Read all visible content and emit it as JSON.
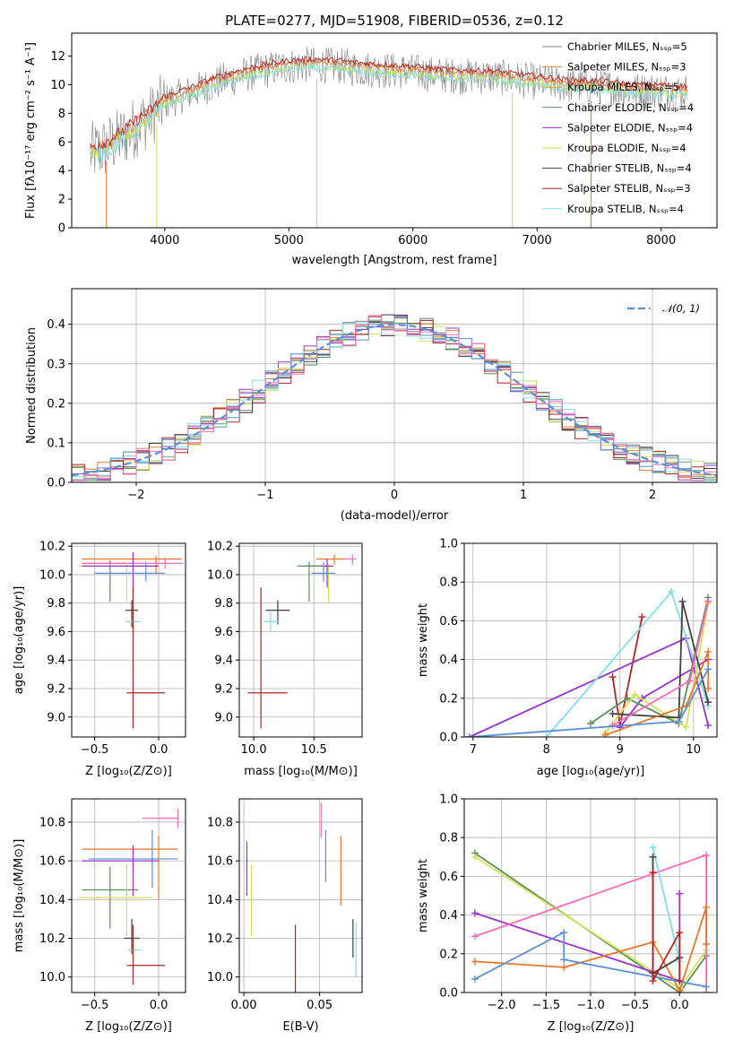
{
  "title": "PLATE=0277, MJD=51908, FIBERID=0536, z=0.12",
  "colors": [
    "#808080",
    "#ff7f0e",
    "#ff7f0e",
    "#2ca02c",
    "#9932cc",
    "#d4e157",
    "#404040",
    "#b22222",
    "#80dfe6"
  ],
  "chart_data": [
    {
      "id": "spectrum",
      "type": "line",
      "xlabel": "wavelength [Angstrom, rest frame]",
      "ylabel": "Flux [fλ10⁻¹⁷ erg cm⁻² s⁻¹ A⁻¹]",
      "xlim": [
        3250,
        8450
      ],
      "ylim": [
        0,
        13.6
      ],
      "xticks": [
        4000,
        5000,
        6000,
        7000,
        8000
      ],
      "yticks": [
        0,
        2,
        4,
        6,
        8,
        10,
        12
      ],
      "legend_position": "upper right",
      "series": [
        {
          "name": "Chabrier MILES, N_SSP=5",
          "color": "#808080"
        },
        {
          "name": "Salpeter MILES, N_SSP=3",
          "color": "#e6762a"
        },
        {
          "name": "Kroupa MILES, N_SSP=5",
          "color": "#e69b3a"
        },
        {
          "name": "Chabrier ELODIE, N_SSP=4",
          "color": "#5a8f5a"
        },
        {
          "name": "Salpeter ELODIE, N_SSP=4",
          "color": "#9932cc"
        },
        {
          "name": "Kroupa ELODIE, N_SSP=4",
          "color": "#d4e157"
        },
        {
          "name": "Chabrier STELIB, N_SSP=4",
          "color": "#404040"
        },
        {
          "name": "Salpeter STELIB, N_SSP=3",
          "color": "#b22222"
        },
        {
          "name": "Kroupa STELIB, N_SSP=4",
          "color": "#80dfe6"
        }
      ],
      "continuum": [
        [
          3400,
          5.2
        ],
        [
          3500,
          5.5
        ],
        [
          3600,
          6.0
        ],
        [
          3700,
          6.6
        ],
        [
          3800,
          7.3
        ],
        [
          3900,
          7.9
        ],
        [
          4000,
          8.8
        ],
        [
          4200,
          9.4
        ],
        [
          4400,
          10.1
        ],
        [
          4600,
          10.6
        ],
        [
          4800,
          11.0
        ],
        [
          5000,
          11.3
        ],
        [
          5200,
          11.4
        ],
        [
          5400,
          11.3
        ],
        [
          5600,
          11.1
        ],
        [
          5800,
          11.0
        ],
        [
          6000,
          10.9
        ],
        [
          6200,
          10.7
        ],
        [
          6400,
          10.6
        ],
        [
          6600,
          10.6
        ],
        [
          6800,
          10.4
        ],
        [
          7000,
          10.2
        ],
        [
          7200,
          10.0
        ],
        [
          7400,
          9.9
        ],
        [
          7600,
          9.8
        ],
        [
          7800,
          9.6
        ],
        [
          8000,
          9.6
        ],
        [
          8200,
          9.5
        ]
      ]
    },
    {
      "id": "residuals",
      "type": "step",
      "xlabel": "(data-model)/error",
      "ylabel": "Normed distribution",
      "xlim": [
        -2.5,
        2.5
      ],
      "ylim": [
        0,
        0.49
      ],
      "xticks": [
        -2,
        -1,
        0,
        1,
        2
      ],
      "xtick_labels": [
        "−2",
        "−1",
        "0",
        "1",
        "2"
      ],
      "yticks": [
        0.0,
        0.1,
        0.2,
        0.3,
        0.4
      ],
      "ytick_labels": [
        "0.0",
        "0.1",
        "0.2",
        "0.3",
        "0.4"
      ],
      "legend": "𝒩(0, 1)",
      "curve": {
        "type": "normal",
        "mean": 0,
        "sigma": 1,
        "color": "#5a8fd8"
      }
    },
    {
      "id": "age_vs_Z",
      "type": "errorbar",
      "xlabel": "Z [log₁₀(Z/Z⊙)]",
      "ylabel": "age  [log₁₀(age/yr)]",
      "xlim": [
        -0.68,
        0.21
      ],
      "ylim": [
        8.86,
        10.22
      ],
      "xticks": [
        -0.5,
        0.0
      ],
      "xtick_labels": [
        "−0.5",
        "0.0"
      ],
      "yticks": [
        9.0,
        9.2,
        9.4,
        9.6,
        9.8,
        10.0,
        10.2
      ],
      "ytick_labels": [
        "9.0",
        "9.2",
        "9.4",
        "9.6",
        "9.8",
        "10.0",
        "10.2"
      ],
      "points": [
        {
          "x": -0.38,
          "xerr": [
            0.22,
            0.22
          ],
          "y": 10.08,
          "yerr": [
            0.27,
            0.02
          ],
          "color": "#5a8f5a"
        },
        {
          "x": -0.02,
          "xerr": [
            0.58,
            0.2
          ],
          "y": 10.11,
          "yerr": [
            0.1,
            0.02
          ],
          "color": "#e6762a"
        },
        {
          "x": 0.05,
          "xerr": [
            0.65,
            0.14
          ],
          "y": 10.08,
          "yerr": [
            0.04,
            0.04
          ],
          "color": "#ff69b4"
        },
        {
          "x": -0.25,
          "xerr": [
            0.38,
            0.2
          ],
          "y": 10.06,
          "yerr": [
            0.25,
            0.03
          ],
          "color": "#d4e157"
        },
        {
          "x": -0.2,
          "xerr": [
            0.4,
            0.2
          ],
          "y": 10.06,
          "yerr": [
            0.2,
            0.1
          ],
          "color": "#9932cc"
        },
        {
          "x": -0.1,
          "xerr": [
            0.4,
            0.15
          ],
          "y": 10.01,
          "yerr": [
            0.06,
            0.08
          ],
          "color": "#5a8fd8"
        },
        {
          "x": -0.21,
          "xerr": [
            0.05,
            0.05
          ],
          "y": 9.75,
          "yerr": [
            0.12,
            0.07
          ],
          "color": "#404040"
        },
        {
          "x": -0.2,
          "xerr": [
            0.06,
            0.06
          ],
          "y": 9.67,
          "yerr": [
            0.06,
            0.07
          ],
          "color": "#80dfe6"
        },
        {
          "x": -0.2,
          "xerr": [
            0.05,
            0.25
          ],
          "y": 9.17,
          "yerr": [
            0.25,
            0.74
          ],
          "color": "#b22222"
        }
      ]
    },
    {
      "id": "age_vs_mass",
      "type": "errorbar",
      "xlabel": "mass [log₁₀(M/M⊙)]",
      "xlim": [
        9.88,
        10.9
      ],
      "ylim": [
        8.86,
        10.22
      ],
      "xticks": [
        10.0,
        10.5
      ],
      "xtick_labels": [
        "10.0",
        "10.5"
      ],
      "yticks": [
        9.0,
        9.2,
        9.4,
        9.6,
        9.8,
        10.0,
        10.2
      ],
      "ytick_labels": [
        "9.0",
        "9.2",
        "9.4",
        "9.6",
        "9.8",
        "10.0",
        "10.2"
      ],
      "points": [
        {
          "x": 10.82,
          "xerr": [
            0.1,
            0.03
          ],
          "y": 10.11,
          "yerr": [
            0.04,
            0.03
          ],
          "color": "#ff69b4"
        },
        {
          "x": 10.67,
          "xerr": [
            0.15,
            0.08
          ],
          "y": 10.11,
          "yerr": [
            0.04,
            0.03
          ],
          "color": "#e6762a"
        },
        {
          "x": 10.62,
          "xerr": [
            0.22,
            0.04
          ],
          "y": 10.06,
          "yerr": [
            0.25,
            0.02
          ],
          "color": "#d4e157"
        },
        {
          "x": 10.61,
          "xerr": [
            0.18,
            0.05
          ],
          "y": 10.06,
          "yerr": [
            0.15,
            0.05
          ],
          "color": "#9932cc"
        },
        {
          "x": 10.58,
          "xerr": [
            0.1,
            0.1
          ],
          "y": 10.01,
          "yerr": [
            0.06,
            0.08
          ],
          "color": "#5a8fd8"
        },
        {
          "x": 10.46,
          "xerr": [
            0.1,
            0.1
          ],
          "y": 10.06,
          "yerr": [
            0.25,
            0.03
          ],
          "color": "#5a8f5a"
        },
        {
          "x": 10.2,
          "xerr": [
            0.1,
            0.1
          ],
          "y": 9.75,
          "yerr": [
            0.1,
            0.07
          ],
          "color": "#404040"
        },
        {
          "x": 10.14,
          "xerr": [
            0.06,
            0.06
          ],
          "y": 9.67,
          "yerr": [
            0.07,
            0.07
          ],
          "color": "#80dfe6"
        },
        {
          "x": 10.06,
          "xerr": [
            0.11,
            0.22
          ],
          "y": 9.17,
          "yerr": [
            0.25,
            0.74
          ],
          "color": "#b22222"
        }
      ]
    },
    {
      "id": "mass_weight_vs_age",
      "type": "line",
      "xlabel": "age  [log₁₀(age/yr)]",
      "ylabel": "mass weight",
      "xlim": [
        6.88,
        10.32
      ],
      "ylim": [
        0.0,
        1.0
      ],
      "xticks": [
        7,
        8,
        9,
        10
      ],
      "yticks": [
        0.0,
        0.2,
        0.4,
        0.6,
        0.8,
        1.0
      ],
      "ytick_labels": [
        "0.0",
        "0.2",
        "0.4",
        "0.6",
        "0.8",
        "1.0"
      ],
      "series": [
        {
          "color": "#b22222",
          "x": [
            8.9,
            9.0,
            9.3
          ],
          "y": [
            0.31,
            0.06,
            0.62
          ]
        },
        {
          "color": "#9932cc",
          "x": [
            6.95,
            9.9,
            10.2
          ],
          "y": [
            0.0,
            0.51,
            0.06
          ]
        },
        {
          "color": "#9932cc",
          "x": [
            9.0,
            9.3,
            10.2
          ],
          "y": [
            0.05,
            0.2,
            0.4
          ]
        },
        {
          "color": "#80dfe6",
          "x": [
            8.0,
            9.7,
            10.2
          ],
          "y": [
            0.0,
            0.75,
            0.16
          ]
        },
        {
          "color": "#5a8f5a",
          "x": [
            8.6,
            9.1,
            9.8,
            10.2
          ],
          "y": [
            0.07,
            0.2,
            0.07,
            0.72
          ]
        },
        {
          "color": "#d4e157",
          "x": [
            8.8,
            9.2,
            9.9,
            10.2
          ],
          "y": [
            0.02,
            0.22,
            0.05,
            0.69
          ]
        },
        {
          "color": "#404040",
          "x": [
            8.9,
            9.8,
            9.85,
            10.2
          ],
          "y": [
            0.12,
            0.1,
            0.7,
            0.18
          ]
        },
        {
          "color": "#e6762a",
          "x": [
            8.8,
            9.9,
            10.2,
            10.2
          ],
          "y": [
            0.01,
            0.16,
            0.44,
            0.25
          ]
        },
        {
          "color": "#ff69b4",
          "x": [
            8.9,
            9.95,
            10.2
          ],
          "y": [
            0.06,
            0.29,
            0.7
          ]
        },
        {
          "color": "#5a8fd8",
          "x": [
            6.95,
            9.8,
            10.2
          ],
          "y": [
            0.0,
            0.08,
            0.35
          ]
        }
      ]
    },
    {
      "id": "mass_vs_Z",
      "type": "errorbar",
      "xlabel": "Z [log₁₀(Z/Z⊙)]",
      "ylabel": "mass [log₁₀(M/M⊙)]",
      "xlim": [
        -0.68,
        0.21
      ],
      "ylim": [
        9.92,
        10.92
      ],
      "xticks": [
        -0.5,
        0.0
      ],
      "xtick_labels": [
        "−0.5",
        "0.0"
      ],
      "yticks": [
        10.0,
        10.2,
        10.4,
        10.6,
        10.8
      ],
      "ytick_labels": [
        "10.0",
        "10.2",
        "10.4",
        "10.6",
        "10.8"
      ],
      "points": [
        {
          "x": 0.15,
          "xerr": [
            0.28,
            0.0
          ],
          "y": 10.82,
          "yerr": [
            0.05,
            0.05
          ],
          "color": "#ff69b4"
        },
        {
          "x": 0.0,
          "xerr": [
            0.6,
            0.15
          ],
          "y": 10.66,
          "yerr": [
            0.26,
            0.07
          ],
          "color": "#e6762a"
        },
        {
          "x": -0.05,
          "xerr": [
            0.5,
            0.2
          ],
          "y": 10.61,
          "yerr": [
            0.15,
            0.15
          ],
          "color": "#5a8fd8"
        },
        {
          "x": -0.2,
          "xerr": [
            0.4,
            0.2
          ],
          "y": 10.6,
          "yerr": [
            0.18,
            0.08
          ],
          "color": "#9932cc"
        },
        {
          "x": -0.38,
          "xerr": [
            0.22,
            0.22
          ],
          "y": 10.45,
          "yerr": [
            0.2,
            0.12
          ],
          "color": "#5a8f5a"
        },
        {
          "x": -0.25,
          "xerr": [
            0.38,
            0.2
          ],
          "y": 10.41,
          "yerr": [
            0.2,
            0.17
          ],
          "color": "#d4e157"
        },
        {
          "x": -0.21,
          "xerr": [
            0.06,
            0.06
          ],
          "y": 10.2,
          "yerr": [
            0.08,
            0.1
          ],
          "color": "#404040"
        },
        {
          "x": -0.2,
          "xerr": [
            0.04,
            0.06
          ],
          "y": 10.14,
          "yerr": [
            0.06,
            0.06
          ],
          "color": "#80dfe6"
        },
        {
          "x": -0.2,
          "xerr": [
            0.05,
            0.25
          ],
          "y": 10.06,
          "yerr": [
            0.1,
            0.21
          ],
          "color": "#b22222"
        }
      ]
    },
    {
      "id": "mass_vs_ebv",
      "type": "errorbar",
      "xlabel": "E(B-V)",
      "xlim": [
        -0.003,
        0.078
      ],
      "ylim": [
        9.92,
        10.92
      ],
      "xticks": [
        0.0,
        0.05
      ],
      "xtick_labels": [
        "0.00",
        "0.05"
      ],
      "yticks": [
        10.0,
        10.2,
        10.4,
        10.6,
        10.8
      ],
      "ytick_labels": [
        "10.0",
        "10.2",
        "10.4",
        "10.6",
        "10.8"
      ],
      "points": [
        {
          "x": 0.051,
          "y": 10.82,
          "yerr": [
            0.1,
            0.08
          ],
          "color": "#ff69b4"
        },
        {
          "x": 0.054,
          "y": 10.61,
          "yerr": [
            0.12,
            0.15
          ],
          "color": "#5a8fd8"
        },
        {
          "x": 0.064,
          "y": 10.55,
          "yerr": [
            0.18,
            0.18
          ],
          "color": "#e6762a"
        },
        {
          "x": 0.002,
          "y": 10.6,
          "yerr": [
            0.18,
            0.1
          ],
          "color": "#9932cc"
        },
        {
          "x": 0.005,
          "y": 10.41,
          "yerr": [
            0.2,
            0.17
          ],
          "color": "#d4e157"
        },
        {
          "x": 0.072,
          "y": 10.2,
          "yerr": [
            0.1,
            0.1
          ],
          "color": "#404040"
        },
        {
          "x": 0.074,
          "y": 10.14,
          "yerr": [
            0.14,
            0.14
          ],
          "color": "#80dfe6"
        },
        {
          "x": 0.034,
          "y": 10.06,
          "yerr": [
            0.14,
            0.21
          ],
          "color": "#b22222"
        }
      ]
    },
    {
      "id": "mass_weight_vs_Z",
      "type": "line",
      "xlabel": "Z [log₁₀(Z/Z⊙)]",
      "ylabel": "mass weight",
      "xlim": [
        -2.42,
        0.42
      ],
      "ylim": [
        0.0,
        1.0
      ],
      "xticks": [
        -2.0,
        -1.5,
        -1.0,
        -0.5,
        0.0
      ],
      "xtick_labels": [
        "−2.0",
        "−1.5",
        "−1.0",
        "−0.5",
        "0.0"
      ],
      "yticks": [
        0.0,
        0.2,
        0.4,
        0.6,
        0.8,
        1.0
      ],
      "ytick_labels": [
        "0.0",
        "0.2",
        "0.4",
        "0.6",
        "0.8",
        "1.0"
      ],
      "series": [
        {
          "color": "#5a8f5a",
          "x": [
            -2.3,
            0.0,
            0.3
          ],
          "y": [
            0.72,
            0.0,
            0.19
          ]
        },
        {
          "color": "#d4e157",
          "x": [
            -2.3,
            0.0,
            0.3
          ],
          "y": [
            0.7,
            0.02,
            0.22
          ]
        },
        {
          "color": "#9932cc",
          "x": [
            -2.3,
            0.0,
            0.0
          ],
          "y": [
            0.41,
            0.06,
            0.51
          ]
        },
        {
          "color": "#ff69b4",
          "x": [
            -2.3,
            0.3,
            0.3
          ],
          "y": [
            0.29,
            0.71,
            0.0
          ]
        },
        {
          "color": "#e6762a",
          "x": [
            -2.3,
            -1.3,
            -0.3,
            0.0,
            0.3,
            0.3
          ],
          "y": [
            0.16,
            0.13,
            0.26,
            0.01,
            0.44,
            0.25
          ]
        },
        {
          "color": "#5a8fd8",
          "x": [
            -2.3,
            -1.3,
            -1.3,
            0.3
          ],
          "y": [
            0.07,
            0.31,
            0.17,
            0.03
          ]
        },
        {
          "color": "#80dfe6",
          "x": [
            -0.3,
            0.0,
            0.0
          ],
          "y": [
            0.75,
            0.16,
            0.06
          ]
        },
        {
          "color": "#404040",
          "x": [
            -0.3,
            -0.3,
            0.0
          ],
          "y": [
            0.7,
            0.1,
            0.18
          ]
        },
        {
          "color": "#b22222",
          "x": [
            -0.3,
            -0.3,
            0.0,
            0.0
          ],
          "y": [
            0.62,
            0.06,
            0.31,
            0.06
          ]
        }
      ]
    }
  ]
}
